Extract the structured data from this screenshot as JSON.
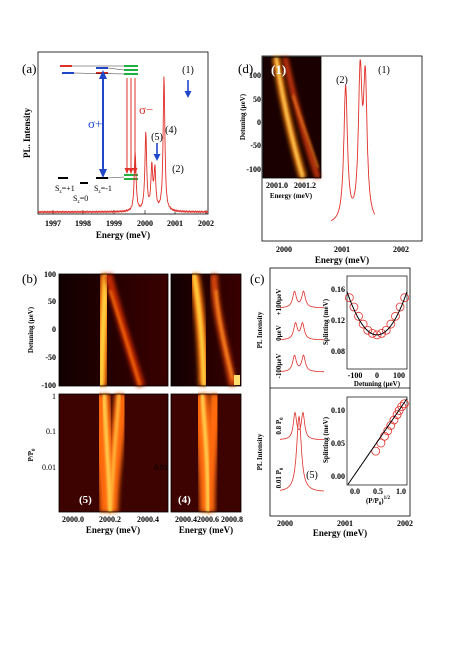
{
  "colors": {
    "spectrum": "#e0302a",
    "sigma_plus": "#1f47c8",
    "sigma_minus": "#e0302a",
    "level_green": "#20b040",
    "map_dark": "#000000",
    "map_bright": "#ffe070"
  },
  "panels": {
    "a": {
      "label": "(a)",
      "ylabel": "PL. Intensity",
      "xlabel": "Energy (meV)",
      "xticks": [
        "1997",
        "1998",
        "1999",
        "2000",
        "2001",
        "2002"
      ],
      "peak_labels": [
        "(1)",
        "(4)",
        "(5)",
        "(2)"
      ],
      "sigma_plus": "σ+",
      "sigma_minus": "σ−",
      "states": [
        "S",
        "=+1",
        "S",
        "=0",
        "S",
        "=-1"
      ],
      "state_sub": "z"
    },
    "b": {
      "label": "(b)",
      "top_ylabel": "Detuning (μeV)",
      "top_yticks": [
        "100",
        "50",
        "0",
        "-50",
        "-100"
      ],
      "bottom_ylabel": "P/P",
      "bottom_ylabel_sub": "0",
      "bottom_yticks": [
        "1",
        "0.1",
        "0.01"
      ],
      "left_xticks": [
        "2000.0",
        "2000.2",
        "2000.4"
      ],
      "right_xticks": [
        "2000.4",
        "2000.6",
        "2000.8"
      ],
      "xlabel": "Energy (meV)",
      "left_tag": "(5)",
      "right_tag": "(4)"
    },
    "c": {
      "label": "(c)",
      "top_ylabel": "PL Intensity",
      "top_traces": [
        "+100μeV",
        "0μeV",
        "-100μeV"
      ],
      "inset_top_ylabel": "Splitting (meV)",
      "inset_top_yticks": [
        "0.16",
        "0.12",
        "0.08"
      ],
      "inset_top_xticks": [
        "-100",
        "0",
        "100"
      ],
      "inset_top_xlabel": "Detuning (μeV)",
      "bottom_ylabel": "PL Intensity",
      "bottom_traces": [
        "0.8 P",
        "0.01 P"
      ],
      "bottom_trace_sub": "0",
      "bottom_tag": "(5)",
      "inset_bottom_ylabel": "Splitting (meV)",
      "inset_bottom_yticks": [
        "0.10",
        "0.05",
        "0.00"
      ],
      "inset_bottom_xticks": [
        "0.0",
        "0.5",
        "1.0"
      ],
      "inset_bottom_xlabel": "(P/P",
      "inset_bottom_xlabel_sub": "0",
      "inset_bottom_xlabel_end": ")",
      "inset_bottom_xlabel_sup": "1/2",
      "xticks": [
        "2000",
        "2001",
        "2002"
      ],
      "xlabel": "Energy (meV)"
    },
    "d": {
      "label": "(d)",
      "map_tag": "(1)",
      "map_ylabel": "Detuning (μeV)",
      "map_yticks": [
        "100",
        "50",
        "0",
        "-50",
        "-100"
      ],
      "map_xticks": [
        "2001.0",
        "2001.2"
      ],
      "map_xlabel": "Energy (meV)",
      "peak_labels": [
        "(2)",
        "(1)"
      ],
      "xticks": [
        "2000",
        "2001",
        "2002"
      ],
      "xlabel": "Energy (meV)"
    }
  },
  "chart_data": [
    {
      "panel": "a",
      "type": "line",
      "xlabel": "Energy (meV)",
      "ylabel": "PL. Intensity",
      "xlim": [
        1997,
        2002.6
      ],
      "peaks": [
        {
          "label": "(5)",
          "x": 2000.2,
          "height": 0.42
        },
        {
          "label": "(4)",
          "x": 2000.55,
          "height": 0.55
        },
        {
          "label": "(2)",
          "x": 2000.75,
          "height": 0.3
        },
        {
          "label": "",
          "x": 2000.85,
          "height": 0.28
        },
        {
          "label": "(1)",
          "x": 2001.15,
          "height": 0.95
        }
      ]
    },
    {
      "panel": "d",
      "type": "line",
      "xlabel": "Energy (meV)",
      "xlim": [
        1999.8,
        2002.0
      ],
      "peaks": [
        {
          "label": "(2)",
          "x": 2000.95,
          "height": 0.82
        },
        {
          "label": "(1)",
          "x": 2001.15,
          "height": 0.86
        },
        {
          "label": "",
          "x": 2001.22,
          "height": 0.82
        }
      ]
    },
    {
      "panel": "c-inset-top",
      "type": "scatter",
      "xlabel": "Detuning (μeV)",
      "ylabel": "Splitting (meV)",
      "xlim": [
        -130,
        130
      ],
      "ylim": [
        0.06,
        0.18
      ],
      "x": [
        -120,
        -100,
        -80,
        -60,
        -40,
        -20,
        0,
        20,
        40,
        60,
        80,
        100,
        120
      ],
      "y": [
        0.152,
        0.14,
        0.128,
        0.118,
        0.11,
        0.106,
        0.104,
        0.106,
        0.11,
        0.118,
        0.128,
        0.14,
        0.152
      ]
    },
    {
      "panel": "c-inset-bottom",
      "type": "scatter",
      "xlabel": "(P/P0)^1/2",
      "ylabel": "Splitting (meV)",
      "xlim": [
        -0.1,
        1.05
      ],
      "ylim": [
        -0.01,
        0.12
      ],
      "x": [
        0.45,
        0.55,
        0.62,
        0.68,
        0.74,
        0.8,
        0.86,
        0.9,
        0.95,
        1.0
      ],
      "y": [
        0.04,
        0.052,
        0.062,
        0.07,
        0.078,
        0.086,
        0.094,
        0.1,
        0.106,
        0.11
      ]
    }
  ]
}
